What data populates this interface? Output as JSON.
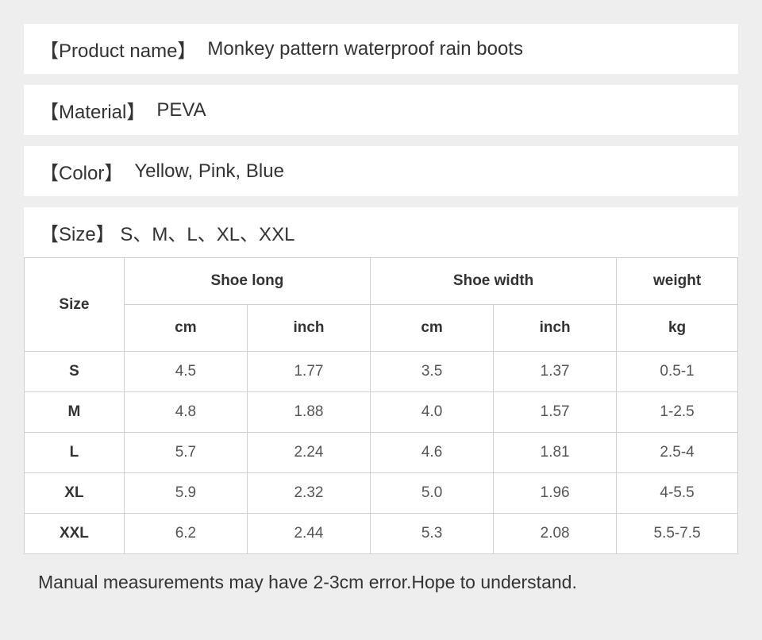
{
  "info_rows": [
    {
      "label": "【Product name】",
      "value": "Monkey pattern waterproof rain boots"
    },
    {
      "label": "【Material】",
      "value": "PEVA"
    },
    {
      "label": "【Color】",
      "value": "Yellow, Pink, Blue"
    }
  ],
  "size_header": {
    "label": "【Size】",
    "value": "S、M、L、XL、XXL"
  },
  "table": {
    "columns": {
      "size": "Size",
      "shoe_long": "Shoe long",
      "shoe_width": "Shoe width",
      "weight": "weight",
      "cm": "cm",
      "inch": "inch",
      "kg": "kg"
    },
    "rows": [
      {
        "size": "S",
        "long_cm": "4.5",
        "long_inch": "1.77",
        "width_cm": "3.5",
        "width_inch": "1.37",
        "weight": "0.5-1"
      },
      {
        "size": "M",
        "long_cm": "4.8",
        "long_inch": "1.88",
        "width_cm": "4.0",
        "width_inch": "1.57",
        "weight": "1-2.5"
      },
      {
        "size": "L",
        "long_cm": "5.7",
        "long_inch": "2.24",
        "width_cm": "4.6",
        "width_inch": "1.81",
        "weight": "2.5-4"
      },
      {
        "size": "XL",
        "long_cm": "5.9",
        "long_inch": "2.32",
        "width_cm": "5.0",
        "width_inch": "1.96",
        "weight": "4-5.5"
      },
      {
        "size": "XXL",
        "long_cm": "6.2",
        "long_inch": "2.44",
        "width_cm": "5.3",
        "width_inch": "2.08",
        "weight": "5.5-7.5"
      }
    ]
  },
  "note": "Manual measurements may have 2-3cm error.Hope to understand.",
  "colors": {
    "page_bg": "#eeeeee",
    "row_bg": "#ffffff",
    "border": "#d0d0d0",
    "text_primary": "#333333",
    "text_secondary": "#555555"
  },
  "typography": {
    "info_fontsize": 24,
    "table_header_fontsize": 19,
    "table_cell_fontsize": 19,
    "note_fontsize": 23
  }
}
